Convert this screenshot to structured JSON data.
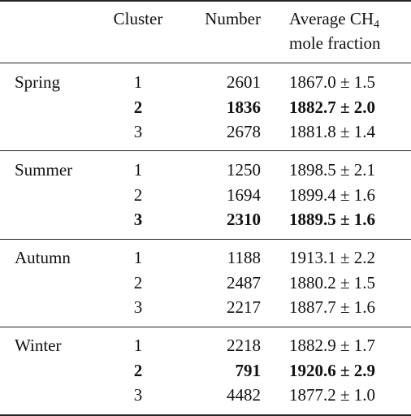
{
  "table": {
    "header": {
      "cluster": "Cluster",
      "number": "Number",
      "average": {
        "text": "Average CH",
        "sub": "4",
        "line2": "mole fraction"
      }
    },
    "groups": [
      {
        "season": "Spring",
        "rows": [
          {
            "cluster": "1",
            "number": 2601,
            "value": "1867.0 ± 1.5",
            "bold": false
          },
          {
            "cluster": "2",
            "number": 1836,
            "value": "1882.7 ± 2.0",
            "bold": true
          },
          {
            "cluster": "3",
            "number": 2678,
            "value": "1881.8 ± 1.4",
            "bold": false
          }
        ]
      },
      {
        "season": "Summer",
        "rows": [
          {
            "cluster": "1",
            "number": 1250,
            "value": "1898.5 ± 2.1",
            "bold": false
          },
          {
            "cluster": "2",
            "number": 1694,
            "value": "1899.4 ± 1.6",
            "bold": false
          },
          {
            "cluster": "3",
            "number": 2310,
            "value": "1889.5 ± 1.6",
            "bold": true
          }
        ]
      },
      {
        "season": "Autumn",
        "rows": [
          {
            "cluster": "1",
            "number": 1188,
            "value": "1913.1 ± 2.2",
            "bold": false
          },
          {
            "cluster": "2",
            "number": 2487,
            "value": "1880.2 ± 1.5",
            "bold": false
          },
          {
            "cluster": "3",
            "number": 2217,
            "value": "1887.7 ± 1.6",
            "bold": false
          }
        ]
      },
      {
        "season": "Winter",
        "rows": [
          {
            "cluster": "1",
            "number": 2218,
            "value": "1882.9 ± 1.7",
            "bold": false
          },
          {
            "cluster": "2",
            "number": 791,
            "value": "1920.6 ± 2.9",
            "bold": true
          },
          {
            "cluster": "3",
            "number": 4482,
            "value": "1877.2 ± 1.0",
            "bold": false
          }
        ]
      }
    ]
  }
}
